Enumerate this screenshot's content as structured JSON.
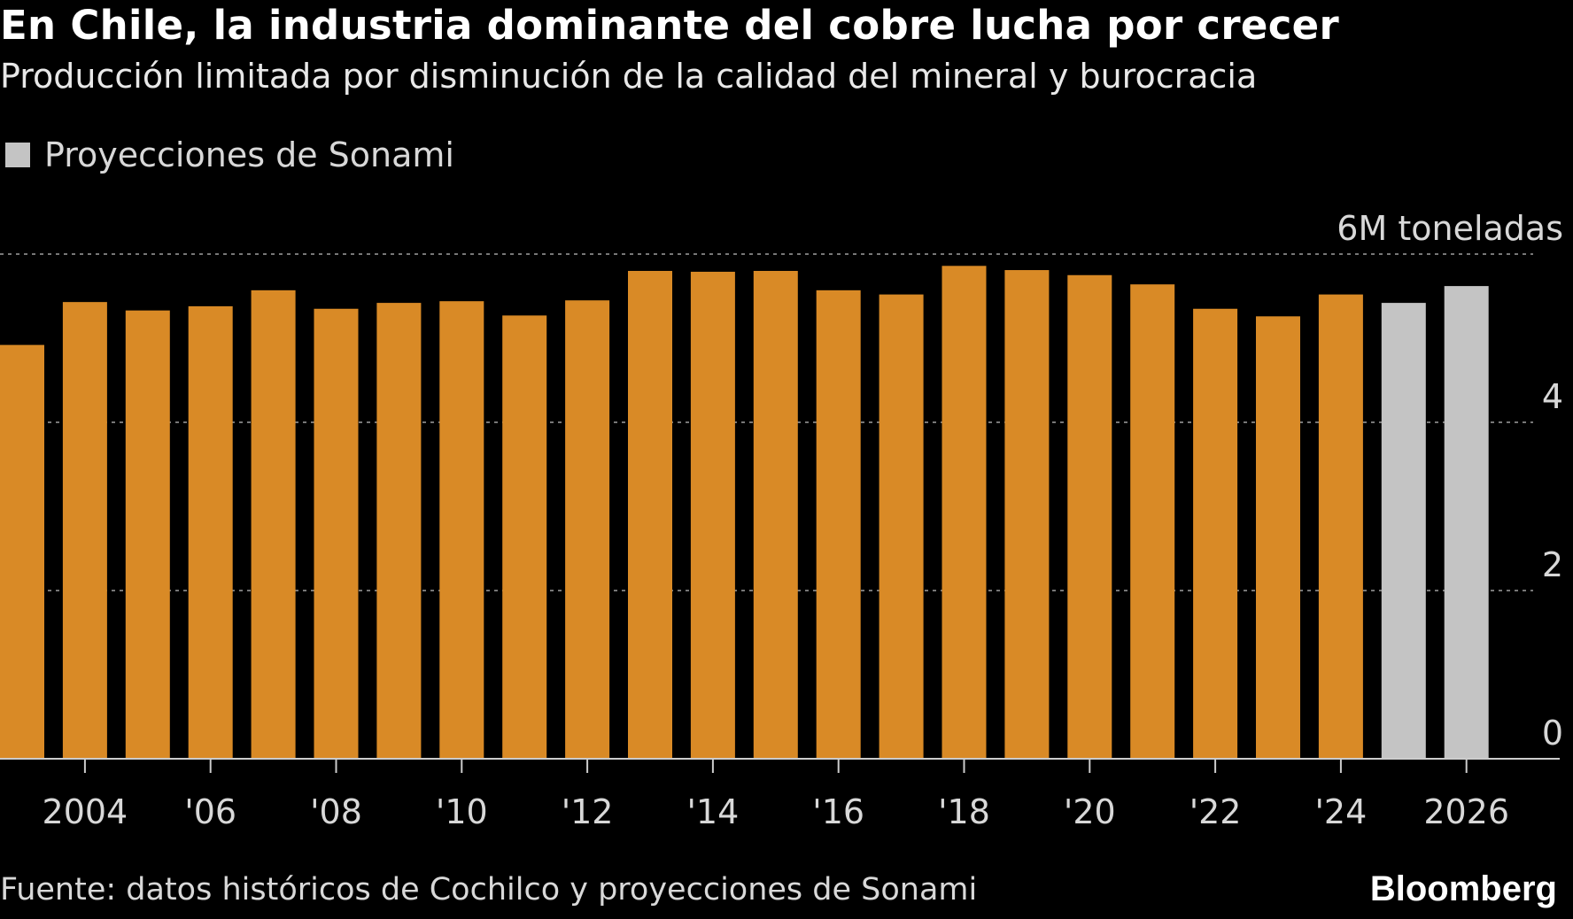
{
  "chart_data": {
    "type": "bar",
    "title": "En Chile, la industria dominante del cobre lucha por crecer",
    "subtitle": "Producción limitada por disminución de la calidad del mineral y burocracia",
    "legend": [
      {
        "name": "Proyecciones de Sonami",
        "color": "#c4c4c4"
      }
    ],
    "legend_placement": "top-left",
    "unit_label": "6M toneladas",
    "categories": [
      "2003",
      "2004",
      "2005",
      "2006",
      "2007",
      "2008",
      "2009",
      "2010",
      "2011",
      "2012",
      "2013",
      "2014",
      "2015",
      "2016",
      "2017",
      "2018",
      "2019",
      "2020",
      "2021",
      "2022",
      "2023",
      "2024",
      "2025",
      "2026"
    ],
    "values": [
      4.92,
      5.43,
      5.33,
      5.38,
      5.57,
      5.35,
      5.42,
      5.44,
      5.27,
      5.45,
      5.8,
      5.79,
      5.8,
      5.57,
      5.52,
      5.86,
      5.81,
      5.75,
      5.64,
      5.35,
      5.26,
      5.52,
      5.42,
      5.62
    ],
    "projected": [
      false,
      false,
      false,
      false,
      false,
      false,
      false,
      false,
      false,
      false,
      false,
      false,
      false,
      false,
      false,
      false,
      false,
      false,
      false,
      false,
      false,
      false,
      true,
      true
    ],
    "colors": {
      "historical": "#d98a26",
      "projected": "#c4c4c4",
      "grid": "#777777",
      "axis": "#cccccc"
    },
    "x_tick_labels": [
      {
        "category": "2004",
        "label": "2004"
      },
      {
        "category": "2006",
        "label": "'06"
      },
      {
        "category": "2008",
        "label": "'08"
      },
      {
        "category": "2010",
        "label": "'10"
      },
      {
        "category": "2012",
        "label": "'12"
      },
      {
        "category": "2014",
        "label": "'14"
      },
      {
        "category": "2016",
        "label": "'16"
      },
      {
        "category": "2018",
        "label": "'18"
      },
      {
        "category": "2020",
        "label": "'20"
      },
      {
        "category": "2022",
        "label": "'22"
      },
      {
        "category": "2024",
        "label": "'24"
      },
      {
        "category": "2026",
        "label": "2026"
      }
    ],
    "y_ticks": [
      0,
      2,
      4,
      6
    ],
    "y_tick_labels": [
      "0",
      "2",
      "4",
      "6M toneladas"
    ],
    "ylim": [
      0,
      6
    ],
    "grid": true
  },
  "source": "Fuente: datos históricos de Cochilco y proyecciones de Sonami",
  "brand": "Bloomberg"
}
